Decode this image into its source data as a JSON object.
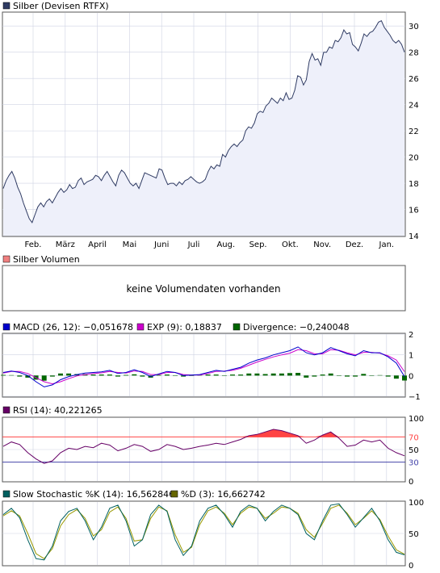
{
  "colors": {
    "price_line": "#2f3b63",
    "price_fill": "#eef0fa",
    "grid": "#cfd3e3",
    "volume_swatch": "#f08080",
    "macd": "#0000cc",
    "exp": "#cc00cc",
    "divergence": "#006600",
    "rsi": "#660066",
    "rsi_upper": "#ff4444",
    "rsi_lower": "#4444aa",
    "slow_k": "#006060",
    "slow_d": "#666600"
  },
  "chart_data": [
    {
      "type": "area",
      "legend": "Silber (Devisen RTFX)",
      "x_labels": [
        "Feb.",
        "März",
        "April",
        "Mai",
        "Juni",
        "Juli",
        "Aug.",
        "Sep.",
        "Okt.",
        "Nov.",
        "Dez.",
        "Jan."
      ],
      "y_ticks": [
        14,
        16,
        18,
        20,
        22,
        24,
        26,
        28,
        30
      ],
      "ylim": [
        14,
        31
      ],
      "series": [
        {
          "values": [
            17.6,
            18.2,
            18.6,
            18.9,
            18.4,
            17.7,
            17.2,
            16.5,
            15.9,
            15.3,
            15.0,
            15.6,
            16.2,
            16.5,
            16.2,
            16.6,
            16.8,
            16.5,
            16.9,
            17.3,
            17.6,
            17.3,
            17.5,
            17.9,
            17.6,
            17.7,
            18.2,
            18.4,
            17.9,
            18.1,
            18.2,
            18.3,
            18.6,
            18.5,
            18.2,
            18.6,
            18.9,
            18.5,
            18.1,
            17.8,
            18.6,
            19.0,
            18.8,
            18.4,
            18.0,
            17.8,
            18.0,
            17.6,
            18.2,
            18.8,
            18.7,
            18.6,
            18.5,
            18.4,
            19.1,
            19.0,
            18.4,
            17.9,
            18.0,
            18.0,
            17.8,
            18.1,
            17.9,
            18.2,
            18.3,
            18.5,
            18.3,
            18.1,
            18.0,
            18.1,
            18.3,
            18.9,
            19.3,
            19.1,
            19.4,
            19.3,
            20.2,
            20.0,
            20.5,
            20.8,
            21.0,
            20.8,
            21.1,
            21.3,
            22.0,
            22.3,
            22.2,
            22.6,
            23.3,
            23.5,
            23.4,
            23.9,
            24.1,
            24.5,
            24.3,
            24.1,
            24.5,
            24.3,
            24.9,
            24.4,
            24.5,
            25.1,
            26.2,
            26.1,
            25.5,
            25.9,
            27.3,
            27.9,
            27.4,
            27.5,
            27.0,
            28.0,
            28.0,
            28.4,
            28.3,
            28.9,
            28.8,
            29.1,
            29.7,
            29.4,
            29.5,
            28.6,
            28.4,
            28.1,
            28.7,
            29.4,
            29.2,
            29.5,
            29.6,
            29.9,
            30.3,
            30.4,
            29.9,
            29.6,
            29.3,
            28.9,
            28.7,
            28.9,
            28.6,
            28.0
          ]
        }
      ]
    },
    {
      "type": "bar",
      "legend": "Silber Volumen",
      "annotation": "keine Volumendaten vorhanden"
    },
    {
      "type": "line",
      "legend": [
        "MACD (26, 12): −0,051678",
        "EXP (9): 0,18837",
        "Divergence: −0,240048"
      ],
      "y_ticks": [
        -1,
        0,
        1,
        2
      ],
      "ylim": [
        -1,
        2
      ],
      "series": [
        {
          "name": "MACD (26, 12): −0,051678",
          "values": [
            0.15,
            0.22,
            0.15,
            0.0,
            -0.3,
            -0.55,
            -0.45,
            -0.2,
            -0.05,
            0.05,
            0.12,
            0.15,
            0.18,
            0.25,
            0.1,
            0.15,
            0.28,
            0.15,
            -0.05,
            0.08,
            0.2,
            0.15,
            0.0,
            0.02,
            0.05,
            0.15,
            0.25,
            0.2,
            0.3,
            0.4,
            0.6,
            0.75,
            0.85,
            1.0,
            1.1,
            1.2,
            1.38,
            1.1,
            1.0,
            1.1,
            1.35,
            1.2,
            1.05,
            0.95,
            1.2,
            1.1,
            1.1,
            0.9,
            0.6,
            -0.05
          ]
        },
        {
          "name": "EXP (9): 0,18837",
          "values": [
            0.12,
            0.2,
            0.2,
            0.1,
            -0.1,
            -0.3,
            -0.4,
            -0.3,
            -0.15,
            -0.02,
            0.05,
            0.1,
            0.13,
            0.2,
            0.15,
            0.12,
            0.22,
            0.2,
            0.05,
            0.05,
            0.15,
            0.15,
            0.05,
            0.02,
            0.03,
            0.1,
            0.2,
            0.22,
            0.25,
            0.35,
            0.5,
            0.65,
            0.78,
            0.9,
            1.0,
            1.08,
            1.25,
            1.2,
            1.05,
            1.05,
            1.25,
            1.22,
            1.1,
            1.0,
            1.12,
            1.12,
            1.08,
            0.95,
            0.75,
            0.19
          ]
        },
        {
          "name": "Divergence: −0,240048",
          "values": [
            0.03,
            0.02,
            -0.05,
            -0.1,
            -0.2,
            -0.25,
            -0.05,
            0.1,
            0.1,
            0.07,
            0.07,
            0.05,
            0.05,
            0.05,
            -0.05,
            0.03,
            0.06,
            -0.05,
            -0.1,
            0.03,
            0.05,
            0.0,
            -0.05,
            0.0,
            0.02,
            0.05,
            0.05,
            -0.02,
            0.05,
            0.05,
            0.1,
            0.1,
            0.07,
            0.1,
            0.1,
            0.12,
            0.13,
            -0.1,
            -0.05,
            0.05,
            0.1,
            -0.02,
            -0.05,
            -0.05,
            0.08,
            -0.02,
            0.02,
            -0.05,
            -0.15,
            -0.24
          ]
        }
      ]
    },
    {
      "type": "line",
      "legend": "RSI (14): 40,221265",
      "y_ticks": [
        0,
        30,
        50,
        70,
        100
      ],
      "ylim": [
        0,
        100
      ],
      "reference_lines": [
        70,
        30
      ],
      "series": [
        {
          "name": "RSI (14): 40,221265",
          "values": [
            55,
            62,
            58,
            45,
            35,
            28,
            32,
            45,
            52,
            50,
            55,
            53,
            60,
            57,
            48,
            52,
            58,
            55,
            47,
            50,
            58,
            55,
            50,
            52,
            55,
            57,
            60,
            58,
            62,
            66,
            72,
            74,
            78,
            82,
            80,
            76,
            72,
            60,
            65,
            73,
            78,
            68,
            55,
            57,
            65,
            62,
            65,
            52,
            45,
            40
          ]
        }
      ]
    },
    {
      "type": "line",
      "legend": [
        "Slow Stochastic %K (14): 16,562846",
        "%D (3): 16,662742"
      ],
      "y_ticks": [
        0,
        50,
        100
      ],
      "ylim": [
        0,
        100
      ],
      "series": [
        {
          "name": "Slow Stochastic %K (14): 16,562846",
          "values": [
            80,
            90,
            75,
            40,
            10,
            8,
            30,
            70,
            85,
            90,
            70,
            40,
            60,
            90,
            95,
            70,
            30,
            40,
            80,
            95,
            85,
            40,
            15,
            30,
            70,
            90,
            95,
            80,
            60,
            85,
            95,
            90,
            70,
            85,
            95,
            90,
            80,
            50,
            40,
            70,
            95,
            97,
            80,
            60,
            75,
            90,
            70,
            40,
            20,
            16
          ]
        },
        {
          "name": "%D (3): 16,662742",
          "values": [
            78,
            86,
            78,
            50,
            18,
            10,
            26,
            62,
            80,
            88,
            74,
            46,
            56,
            84,
            92,
            74,
            38,
            40,
            74,
            92,
            86,
            48,
            20,
            28,
            64,
            86,
            92,
            82,
            64,
            82,
            92,
            90,
            74,
            82,
            92,
            90,
            82,
            56,
            44,
            66,
            90,
            95,
            82,
            64,
            74,
            86,
            72,
            46,
            24,
            17
          ]
        }
      ]
    }
  ]
}
